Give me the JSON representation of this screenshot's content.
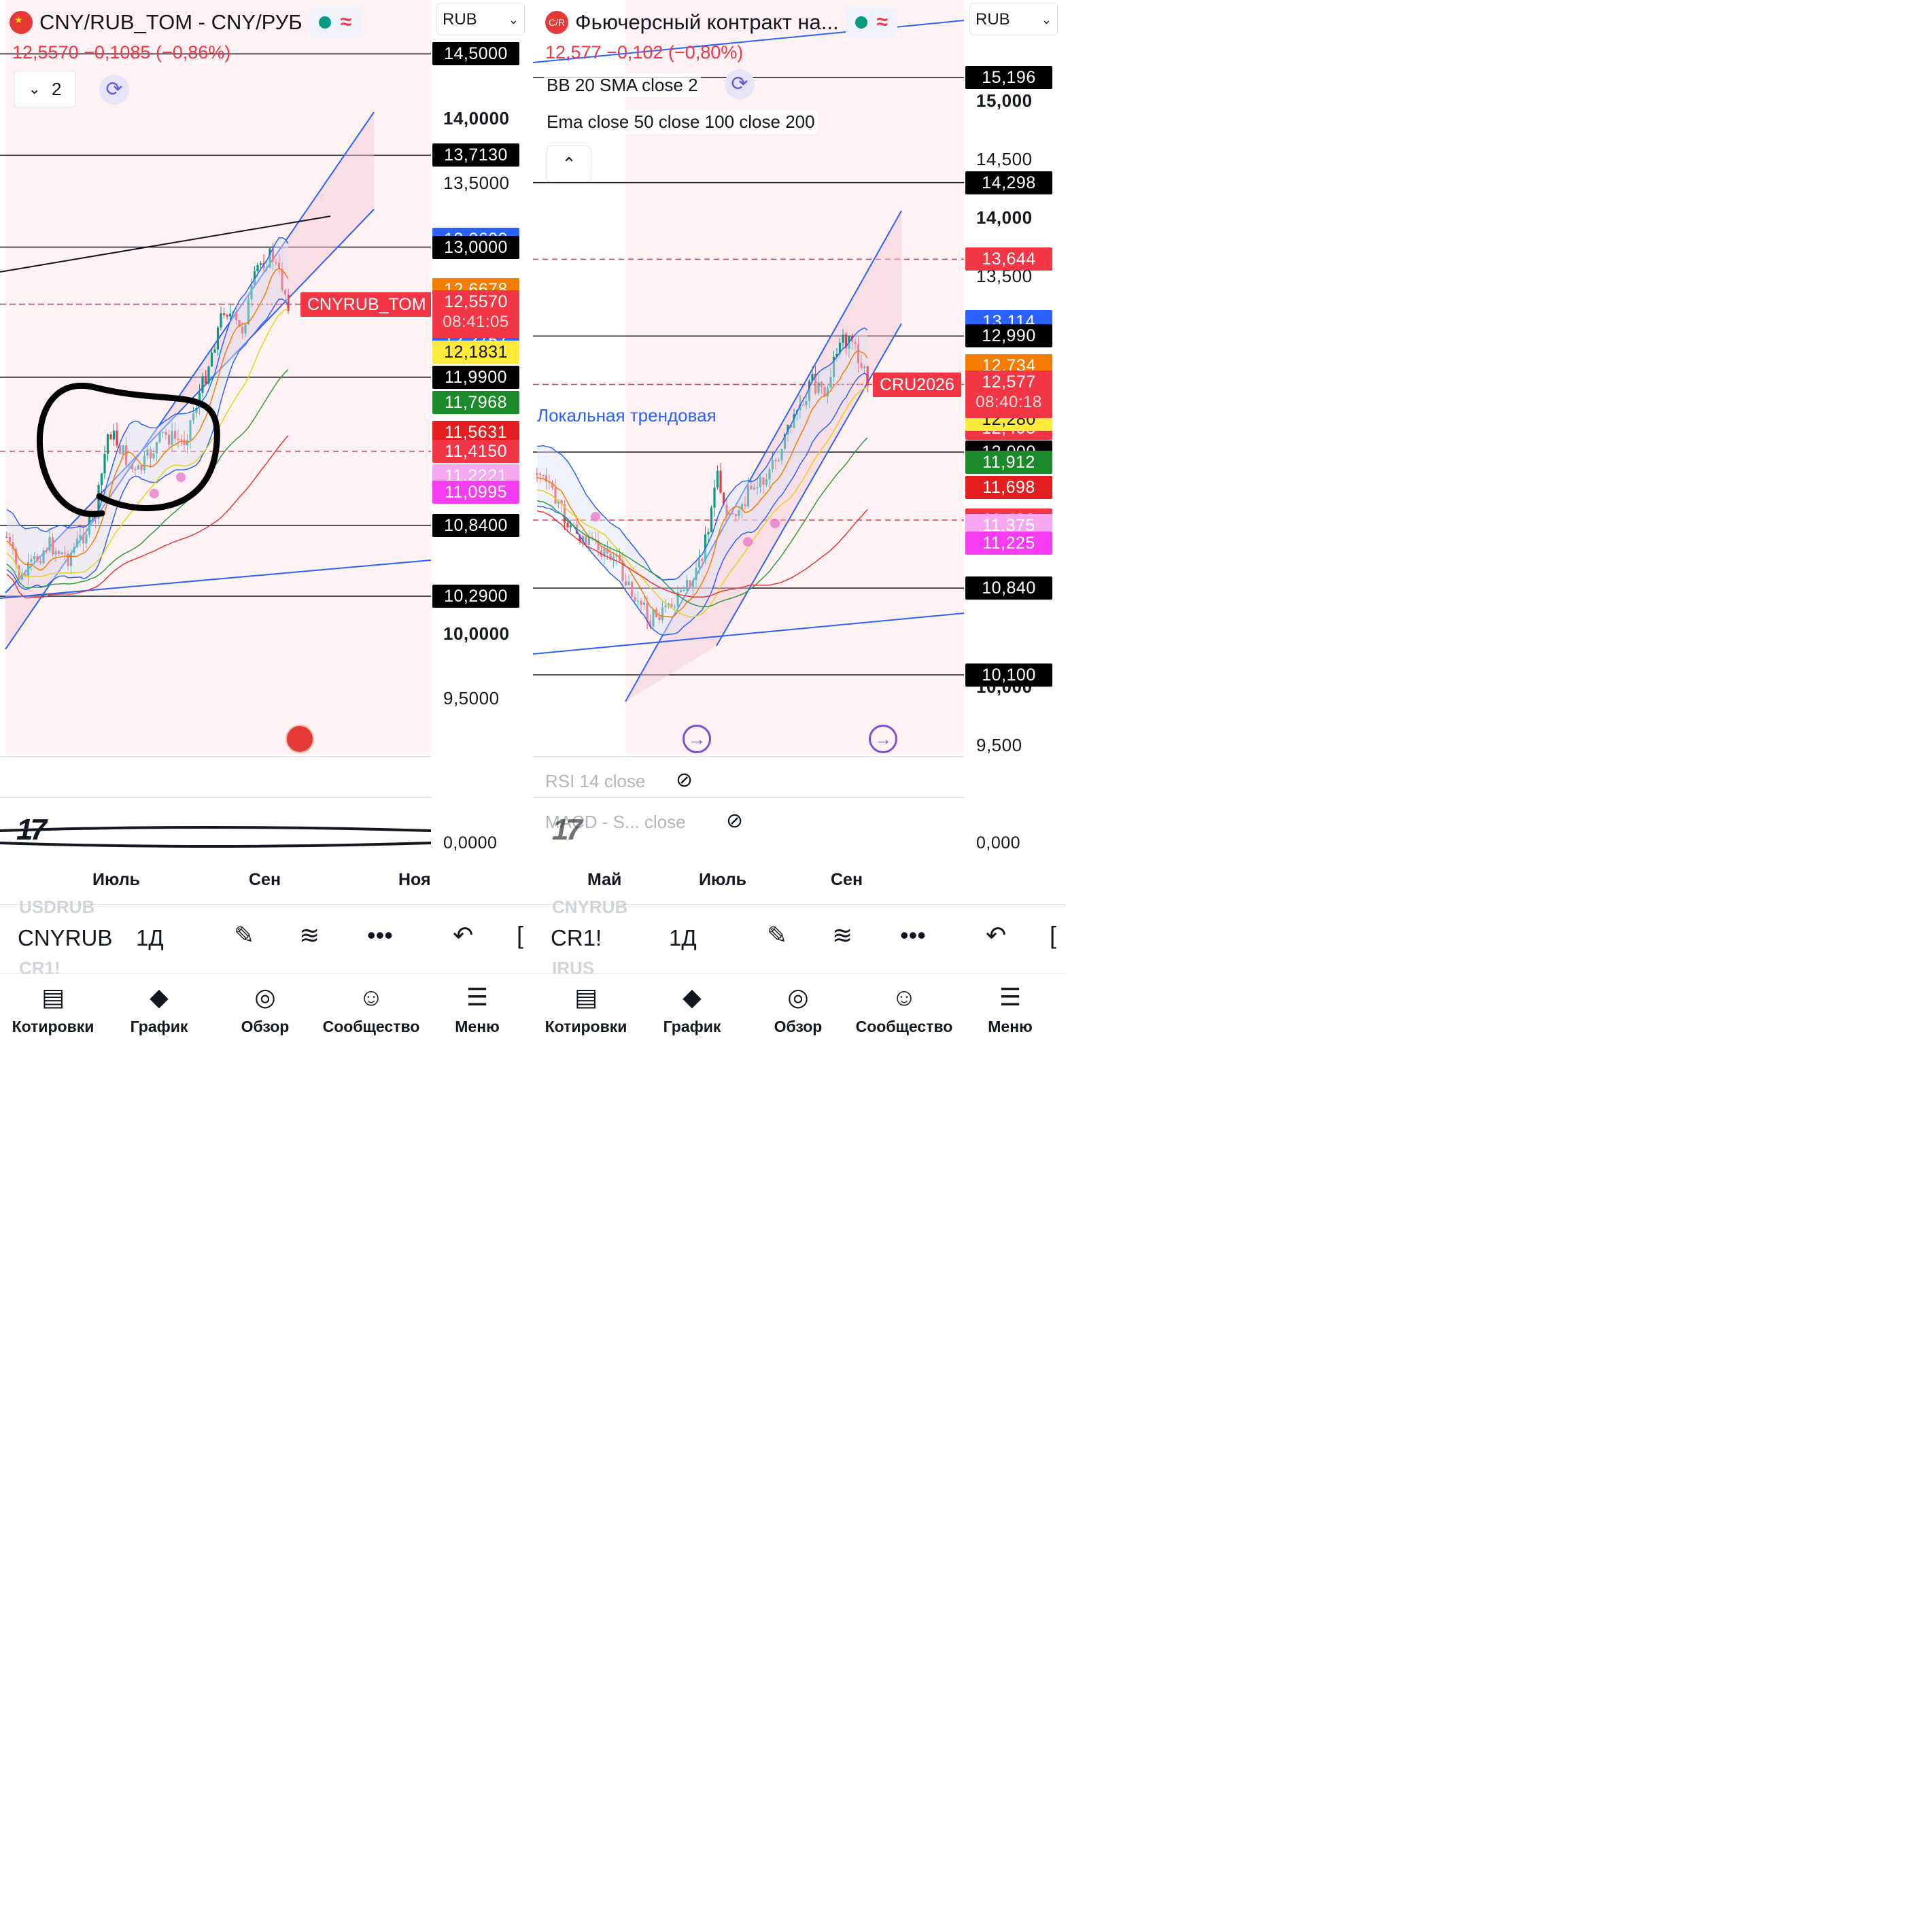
{
  "left": {
    "title": "CNY/RUB_TOM - CNY/РУБ",
    "price_line": "12,5570 −0,1085 (−0,86%)",
    "currency": "RUB",
    "legend_count": "2",
    "symbol_tag": "CNYRUB_TOM",
    "axis_labels": [
      {
        "text": "14,0000",
        "y": 14.0
      },
      {
        "text": "13,5000",
        "y": 13.5
      },
      {
        "text": "10,0000",
        "y": 10.0
      },
      {
        "text": "9,5000",
        "y": 9.5
      }
    ],
    "axis_badges": [
      {
        "text": "14,5000",
        "y": 14.5,
        "color": "#000000",
        "fg": "#ffffff"
      },
      {
        "text": "13,7130",
        "y": 13.713,
        "color": "#000000",
        "fg": "#ffffff"
      },
      {
        "text": "13,0600",
        "y": 13.06,
        "color": "#2962ff",
        "fg": "#ffffff"
      },
      {
        "text": "13,0000",
        "y": 13.0,
        "color": "#000000",
        "fg": "#ffffff"
      },
      {
        "text": "12,6678",
        "y": 12.6678,
        "color": "#f57c00",
        "fg": "#ffffff"
      },
      {
        "text": "12,4950",
        "y": 12.495,
        "color": "#f23645",
        "fg": "#ffffff"
      },
      {
        "text": "12,2757",
        "y": 12.2757,
        "color": "#2962ff",
        "fg": "#ffffff"
      },
      {
        "text": "12,1831",
        "y": 12.1831,
        "color": "#ffeb3b",
        "fg": "#131722"
      },
      {
        "text": "11,9900",
        "y": 11.99,
        "color": "#000000",
        "fg": "#ffffff"
      },
      {
        "text": "11,7968",
        "y": 11.7968,
        "color": "#1b8a2a",
        "fg": "#ffffff"
      },
      {
        "text": "11,5631",
        "y": 11.5631,
        "color": "#e41e1e",
        "fg": "#ffffff"
      },
      {
        "text": "11,4150",
        "y": 11.415,
        "color": "#f23645",
        "fg": "#ffffff"
      },
      {
        "text": "11,2221",
        "y": 11.2221,
        "color": "#f7a8f0",
        "fg": "#ffffff"
      },
      {
        "text": "11,0995",
        "y": 11.0995,
        "color": "#f53cf0",
        "fg": "#ffffff"
      },
      {
        "text": "10,8400",
        "y": 10.84,
        "color": "#000000",
        "fg": "#ffffff"
      },
      {
        "text": "10,2900",
        "y": 10.29,
        "color": "#000000",
        "fg": "#ffffff"
      }
    ],
    "last_price": {
      "text": "12,5570",
      "countdown": "08:41:05",
      "y": 12.557
    },
    "zero_label": "0,0000",
    "time_labels": [
      "Июль",
      "Сен",
      "Ноя"
    ],
    "toolbar_symbol": "CNYRUB",
    "ghost_above": "USDRUB",
    "ghost_below": "CR1!"
  },
  "right": {
    "title": "Фьючерсный контракт на...",
    "price_line": "12,577 −0,102 (−0,80%)",
    "currency": "RUB",
    "indicator_bb": "BB 20 SMA close 2",
    "indicator_ema": "Ema close 50 close 100 close 200",
    "trend_label": "Локальная трендовая",
    "symbol_tag": "CRU2026",
    "rsi_label": "RSI 14 close",
    "macd_label": "MACD - S... close",
    "axis_labels": [
      {
        "text": "15,000",
        "y": 15.0
      },
      {
        "text": "14,500",
        "y": 14.5
      },
      {
        "text": "14,000",
        "y": 14.0
      },
      {
        "text": "13,500",
        "y": 13.5
      },
      {
        "text": "10,000",
        "y": 10.0
      },
      {
        "text": "9,500",
        "y": 9.5
      }
    ],
    "axis_badges": [
      {
        "text": "15,196",
        "y": 15.196,
        "color": "#000000",
        "fg": "#ffffff"
      },
      {
        "text": "14,298",
        "y": 14.298,
        "color": "#000000",
        "fg": "#ffffff"
      },
      {
        "text": "13,644",
        "y": 13.644,
        "color": "#f23645",
        "fg": "#ffffff"
      },
      {
        "text": "13,114",
        "y": 13.114,
        "color": "#2962ff",
        "fg": "#ffffff"
      },
      {
        "text": "12,990",
        "y": 12.99,
        "color": "#000000",
        "fg": "#ffffff"
      },
      {
        "text": "12,734",
        "y": 12.734,
        "color": "#f57c00",
        "fg": "#ffffff"
      },
      {
        "text": "12,495",
        "y": 12.495,
        "color": "#f23645",
        "fg": "#ffffff"
      },
      {
        "text": "12,354",
        "y": 12.354,
        "color": "#2962ff",
        "fg": "#ffffff"
      },
      {
        "text": "12,280",
        "y": 12.28,
        "color": "#ffeb3b",
        "fg": "#131722"
      },
      {
        "text": "12,000",
        "y": 12.0,
        "color": "#000000",
        "fg": "#ffffff"
      },
      {
        "text": "11,912",
        "y": 11.912,
        "color": "#1b8a2a",
        "fg": "#ffffff"
      },
      {
        "text": "11,698",
        "y": 11.698,
        "color": "#e41e1e",
        "fg": "#ffffff"
      },
      {
        "text": "11,420",
        "y": 11.42,
        "color": "#f23645",
        "fg": "#ffffff"
      },
      {
        "text": "11,375",
        "y": 11.375,
        "color": "#f7a8f0",
        "fg": "#ffffff"
      },
      {
        "text": "11,225",
        "y": 11.225,
        "color": "#f53cf0",
        "fg": "#ffffff"
      },
      {
        "text": "10,840",
        "y": 10.84,
        "color": "#000000",
        "fg": "#ffffff"
      },
      {
        "text": "10,100",
        "y": 10.1,
        "color": "#000000",
        "fg": "#ffffff"
      }
    ],
    "last_price": {
      "text": "12,577",
      "countdown": "08:40:18",
      "y": 12.577
    },
    "zero_label": "0,000",
    "time_labels": [
      "Май",
      "Июль",
      "Сен"
    ],
    "toolbar_symbol": "CR1!",
    "ghost_above": "CNYRUB",
    "ghost_below": "IRUS"
  },
  "interval": "1Д",
  "nav": [
    "Котировки",
    "График",
    "Обзор",
    "Сообщество",
    "Меню"
  ],
  "icons": {
    "draw": "pen-icon",
    "chart_style": "trend-lines-icon",
    "more": "more-dots-icon",
    "undo": "undo-icon",
    "quotes": "watchlist-icon",
    "chart": "chart-icon",
    "explore": "compass-icon",
    "community": "community-icon",
    "menu": "menu-icon"
  },
  "colors": {
    "up": "#089981",
    "down": "#f23645",
    "channel": "#2962ff",
    "channel_fill": "#fde4ea"
  }
}
